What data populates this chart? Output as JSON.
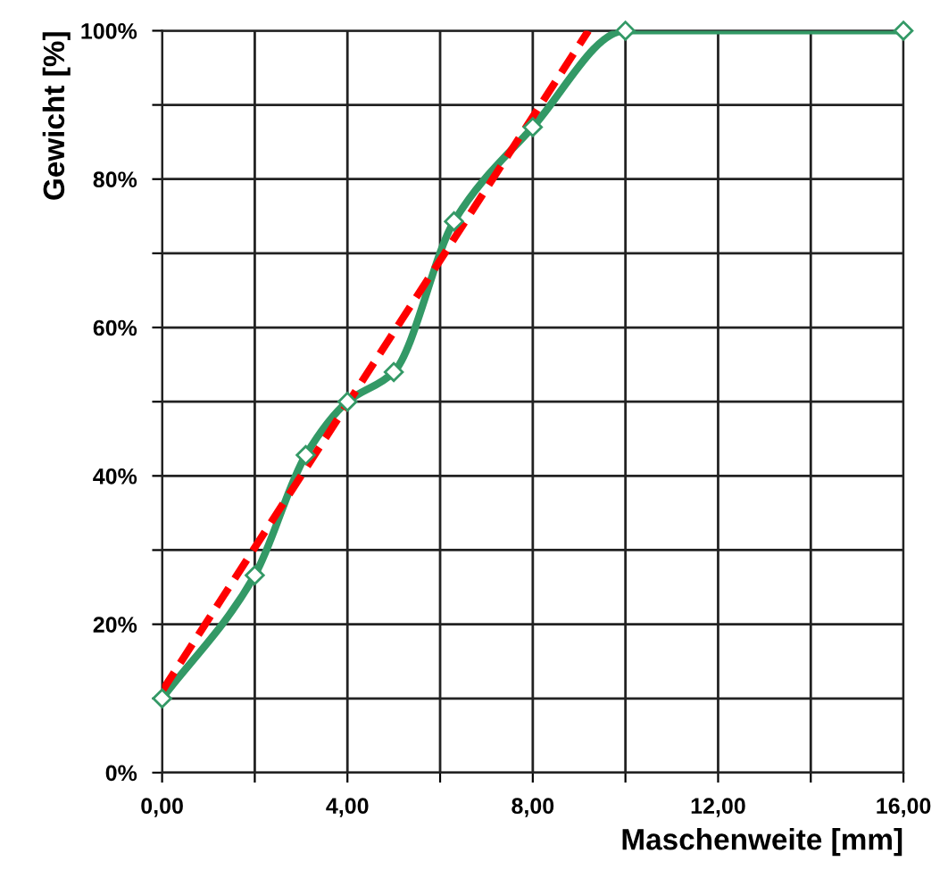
{
  "chart_data": {
    "type": "line",
    "xlabel": "Maschenweite [mm]",
    "ylabel": "Gewicht [%]",
    "series": [
      {
        "color": "#339966",
        "marker": "diamond",
        "line_style": "solid",
        "x": [
          0,
          2,
          3.1,
          4,
          5,
          6.3,
          8,
          10,
          16
        ],
        "values": [
          10,
          26.6,
          42.8,
          50,
          54,
          74.3,
          87,
          100,
          100
        ]
      },
      {
        "color": "#ff0000",
        "marker": "none",
        "line_style": "dashed",
        "x": [
          0,
          9.2
        ],
        "values": [
          11,
          100
        ]
      }
    ],
    "xlim": [
      0,
      16
    ],
    "xticks": [
      {
        "value": 0,
        "label": "0,00"
      },
      {
        "value": 2,
        "label": null
      },
      {
        "value": 4,
        "label": "4,00"
      },
      {
        "value": 6,
        "label": null
      },
      {
        "value": 8,
        "label": "8,00"
      },
      {
        "value": 10,
        "label": null
      },
      {
        "value": 12,
        "label": "12,00"
      },
      {
        "value": 14,
        "label": null
      },
      {
        "value": 16,
        "label": "16,00"
      }
    ],
    "ylim": [
      0,
      100
    ],
    "yticks": [
      {
        "value": 0,
        "label": "0%"
      },
      {
        "value": 10,
        "label": null
      },
      {
        "value": 20,
        "label": "20%"
      },
      {
        "value": 30,
        "label": null
      },
      {
        "value": 40,
        "label": "40%"
      },
      {
        "value": 50,
        "label": null
      },
      {
        "value": 60,
        "label": "60%"
      },
      {
        "value": 70,
        "label": null
      },
      {
        "value": 80,
        "label": "80%"
      },
      {
        "value": 90,
        "label": null
      },
      {
        "value": 100,
        "label": "100%"
      }
    ],
    "grid": true
  }
}
